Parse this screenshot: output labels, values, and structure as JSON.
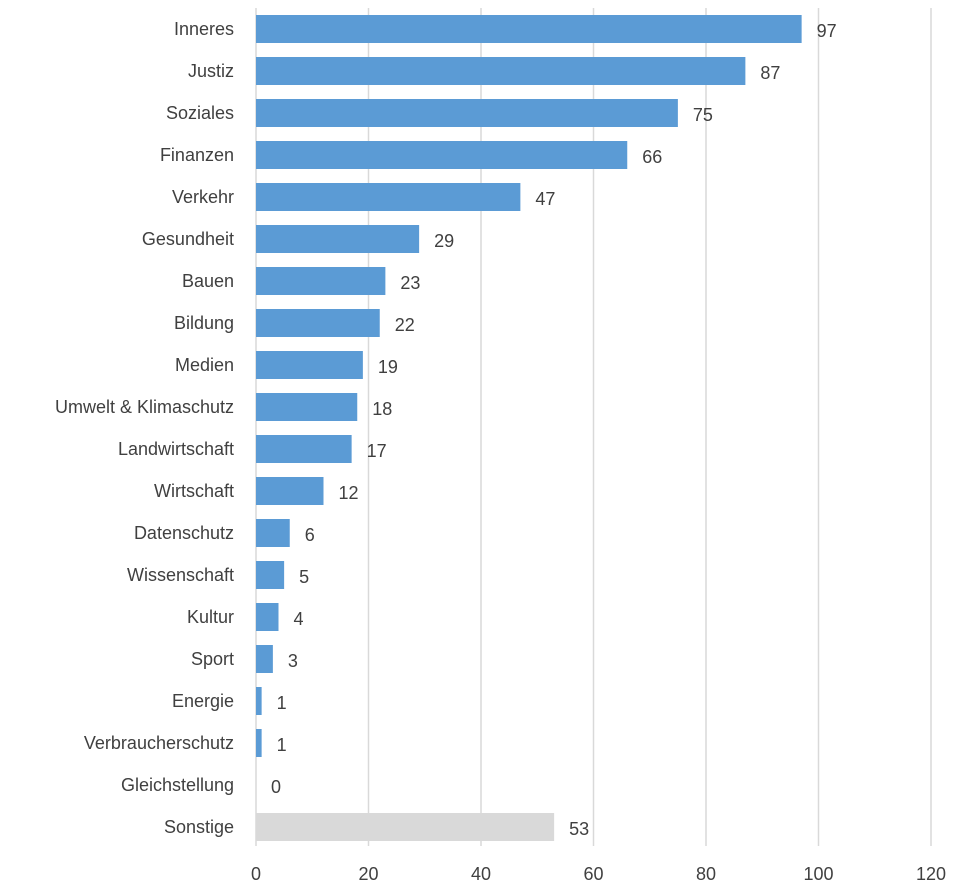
{
  "chart_data": {
    "type": "bar",
    "orientation": "horizontal",
    "categories": [
      "Inneres",
      "Justiz",
      "Soziales",
      "Finanzen",
      "Verkehr",
      "Gesundheit",
      "Bauen",
      "Bildung",
      "Medien",
      "Umwelt & Klimaschutz",
      "Landwirtschaft",
      "Wirtschaft",
      "Datenschutz",
      "Wissenschaft",
      "Kultur",
      "Sport",
      "Energie",
      "Verbraucherschutz",
      "Gleichstellung",
      "Sonstige"
    ],
    "values": [
      97,
      87,
      75,
      66,
      47,
      29,
      23,
      22,
      19,
      18,
      17,
      12,
      6,
      5,
      4,
      3,
      1,
      1,
      0,
      53
    ],
    "data_labels": [
      "97",
      "87",
      "75",
      "66",
      "47",
      "29",
      "23",
      "22",
      "19",
      "18",
      "17",
      "12",
      "6",
      "5",
      "4",
      "3",
      "1",
      "1",
      "0",
      "53"
    ],
    "xlim": [
      0,
      120
    ],
    "x_ticks": [
      "0",
      "20",
      "40",
      "60",
      "80",
      "100",
      "120"
    ],
    "grid": "vertical",
    "colors": {
      "bar": "#5b9bd5",
      "highlight_bar": "#d9d9d9",
      "highlight_category": "Sonstige",
      "text": "#404040",
      "grid": "#d9d9d9"
    }
  }
}
